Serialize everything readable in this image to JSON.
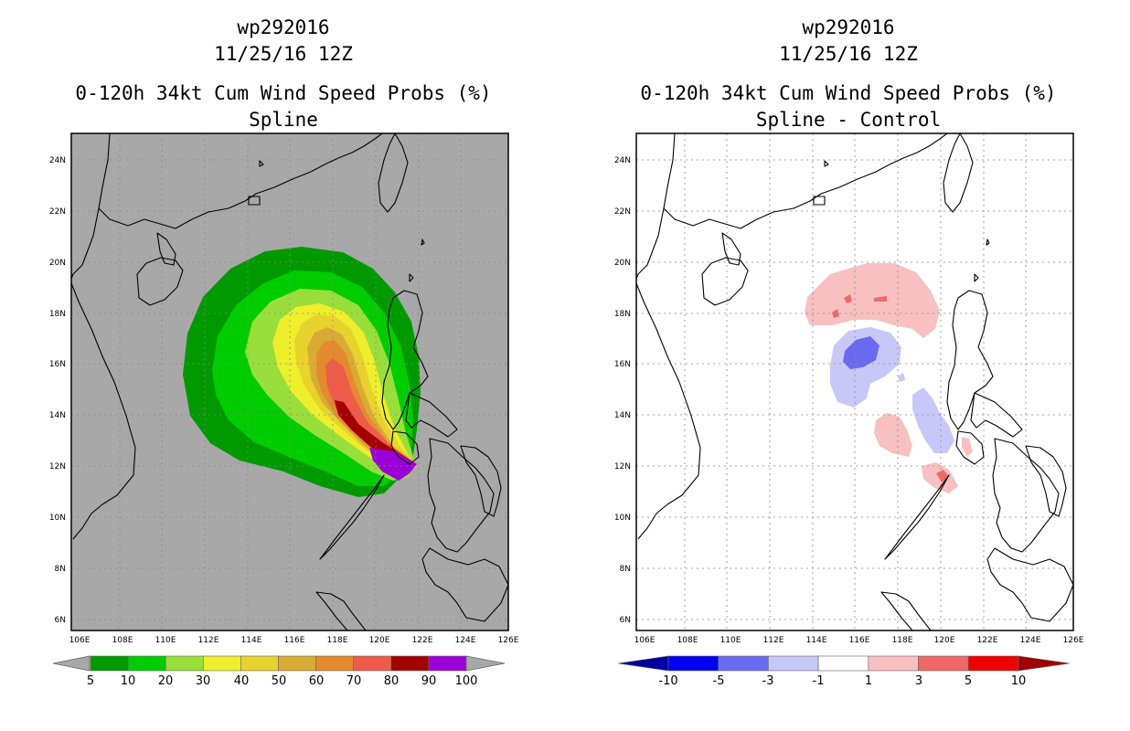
{
  "storm_id": "wp292016",
  "datetime": "11/25/16 12Z",
  "left_panel": {
    "title": "0-120h 34kt Cum Wind Speed Probs (%)",
    "subtitle": "Spline"
  },
  "right_panel": {
    "title": "0-120h 34kt Cum Wind Speed Probs (%)",
    "subtitle": "Spline - Control"
  },
  "chart_data": [
    {
      "type": "heatmap",
      "title": "0-120h 34kt Cum Wind Speed Probs (%) - Spline",
      "x_ticks": [
        "106E",
        "108E",
        "110E",
        "112E",
        "114E",
        "116E",
        "118E",
        "120E",
        "122E",
        "124E",
        "126E"
      ],
      "y_ticks": [
        "24N",
        "22N",
        "20N",
        "18N",
        "16N",
        "14N",
        "12N",
        "10N",
        "8N",
        "6N"
      ],
      "xlim": [
        105.9,
        126.2
      ],
      "ylim": [
        5.5,
        25.1
      ],
      "colorbar": {
        "labels": [
          "5",
          "10",
          "20",
          "30",
          "40",
          "50",
          "60",
          "70",
          "80",
          "90",
          "100"
        ],
        "colors": [
          "#009a00",
          "#00cd00",
          "#9ade3c",
          "#eeee2c",
          "#e8d22e",
          "#d8ab34",
          "#e58a2e",
          "#ee5b4b",
          "#a50000",
          "#9b00d9"
        ]
      },
      "max_region": {
        "lon": 120.5,
        "lat": 12.3,
        "value": ">90"
      }
    },
    {
      "type": "heatmap",
      "title": "0-120h 34kt Cum Wind Speed Probs (%) - Spline - Control",
      "x_ticks": [
        "106E",
        "108E",
        "110E",
        "112E",
        "114E",
        "116E",
        "118E",
        "120E",
        "122E",
        "124E",
        "126E"
      ],
      "y_ticks": [
        "24N",
        "22N",
        "20N",
        "18N",
        "16N",
        "14N",
        "12N",
        "10N",
        "8N",
        "6N"
      ],
      "xlim": [
        105.9,
        126.2
      ],
      "ylim": [
        5.5,
        25.1
      ],
      "colorbar": {
        "labels": [
          "-10",
          "-5",
          "-3",
          "-1",
          "1",
          "3",
          "5",
          "10"
        ],
        "colors": [
          "#0000a0",
          "#0000f0",
          "#6a6af0",
          "#c8c8f8",
          "#ffffff",
          "#f8c0c0",
          "#f06868",
          "#f00000",
          "#a00000"
        ]
      }
    }
  ]
}
